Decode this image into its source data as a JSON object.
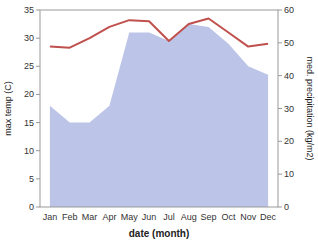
{
  "chart_data": {
    "type": "line",
    "categories": [
      "Jan",
      "Feb",
      "Mar",
      "Apr",
      "May",
      "Jun",
      "Jul",
      "Aug",
      "Sep",
      "Oct",
      "Nov",
      "Dec"
    ],
    "series": [
      {
        "type": "area",
        "color": "#bcc5e8",
        "values": [
          18,
          15,
          15,
          18,
          31,
          31,
          29.5,
          32.5,
          32,
          29,
          25,
          23.5
        ]
      },
      {
        "type": "line",
        "color": "#c0504d",
        "values": [
          28.5,
          28.3,
          30.0,
          32.0,
          33.2,
          33.0,
          29.5,
          32.5,
          33.5,
          31.0,
          28.5,
          29.0
        ]
      }
    ],
    "xlabel": "date (month)",
    "ylabel": "max temp (C)",
    "y2label": "med. precipitation (kg/m2)",
    "ylim": [
      0,
      35
    ],
    "yticks": [
      0,
      5,
      10,
      15,
      20,
      25,
      30,
      35
    ],
    "y2lim": [
      0,
      60
    ],
    "y2ticks": [
      0,
      10,
      20,
      30,
      40,
      50,
      60
    ],
    "grid": false
  }
}
